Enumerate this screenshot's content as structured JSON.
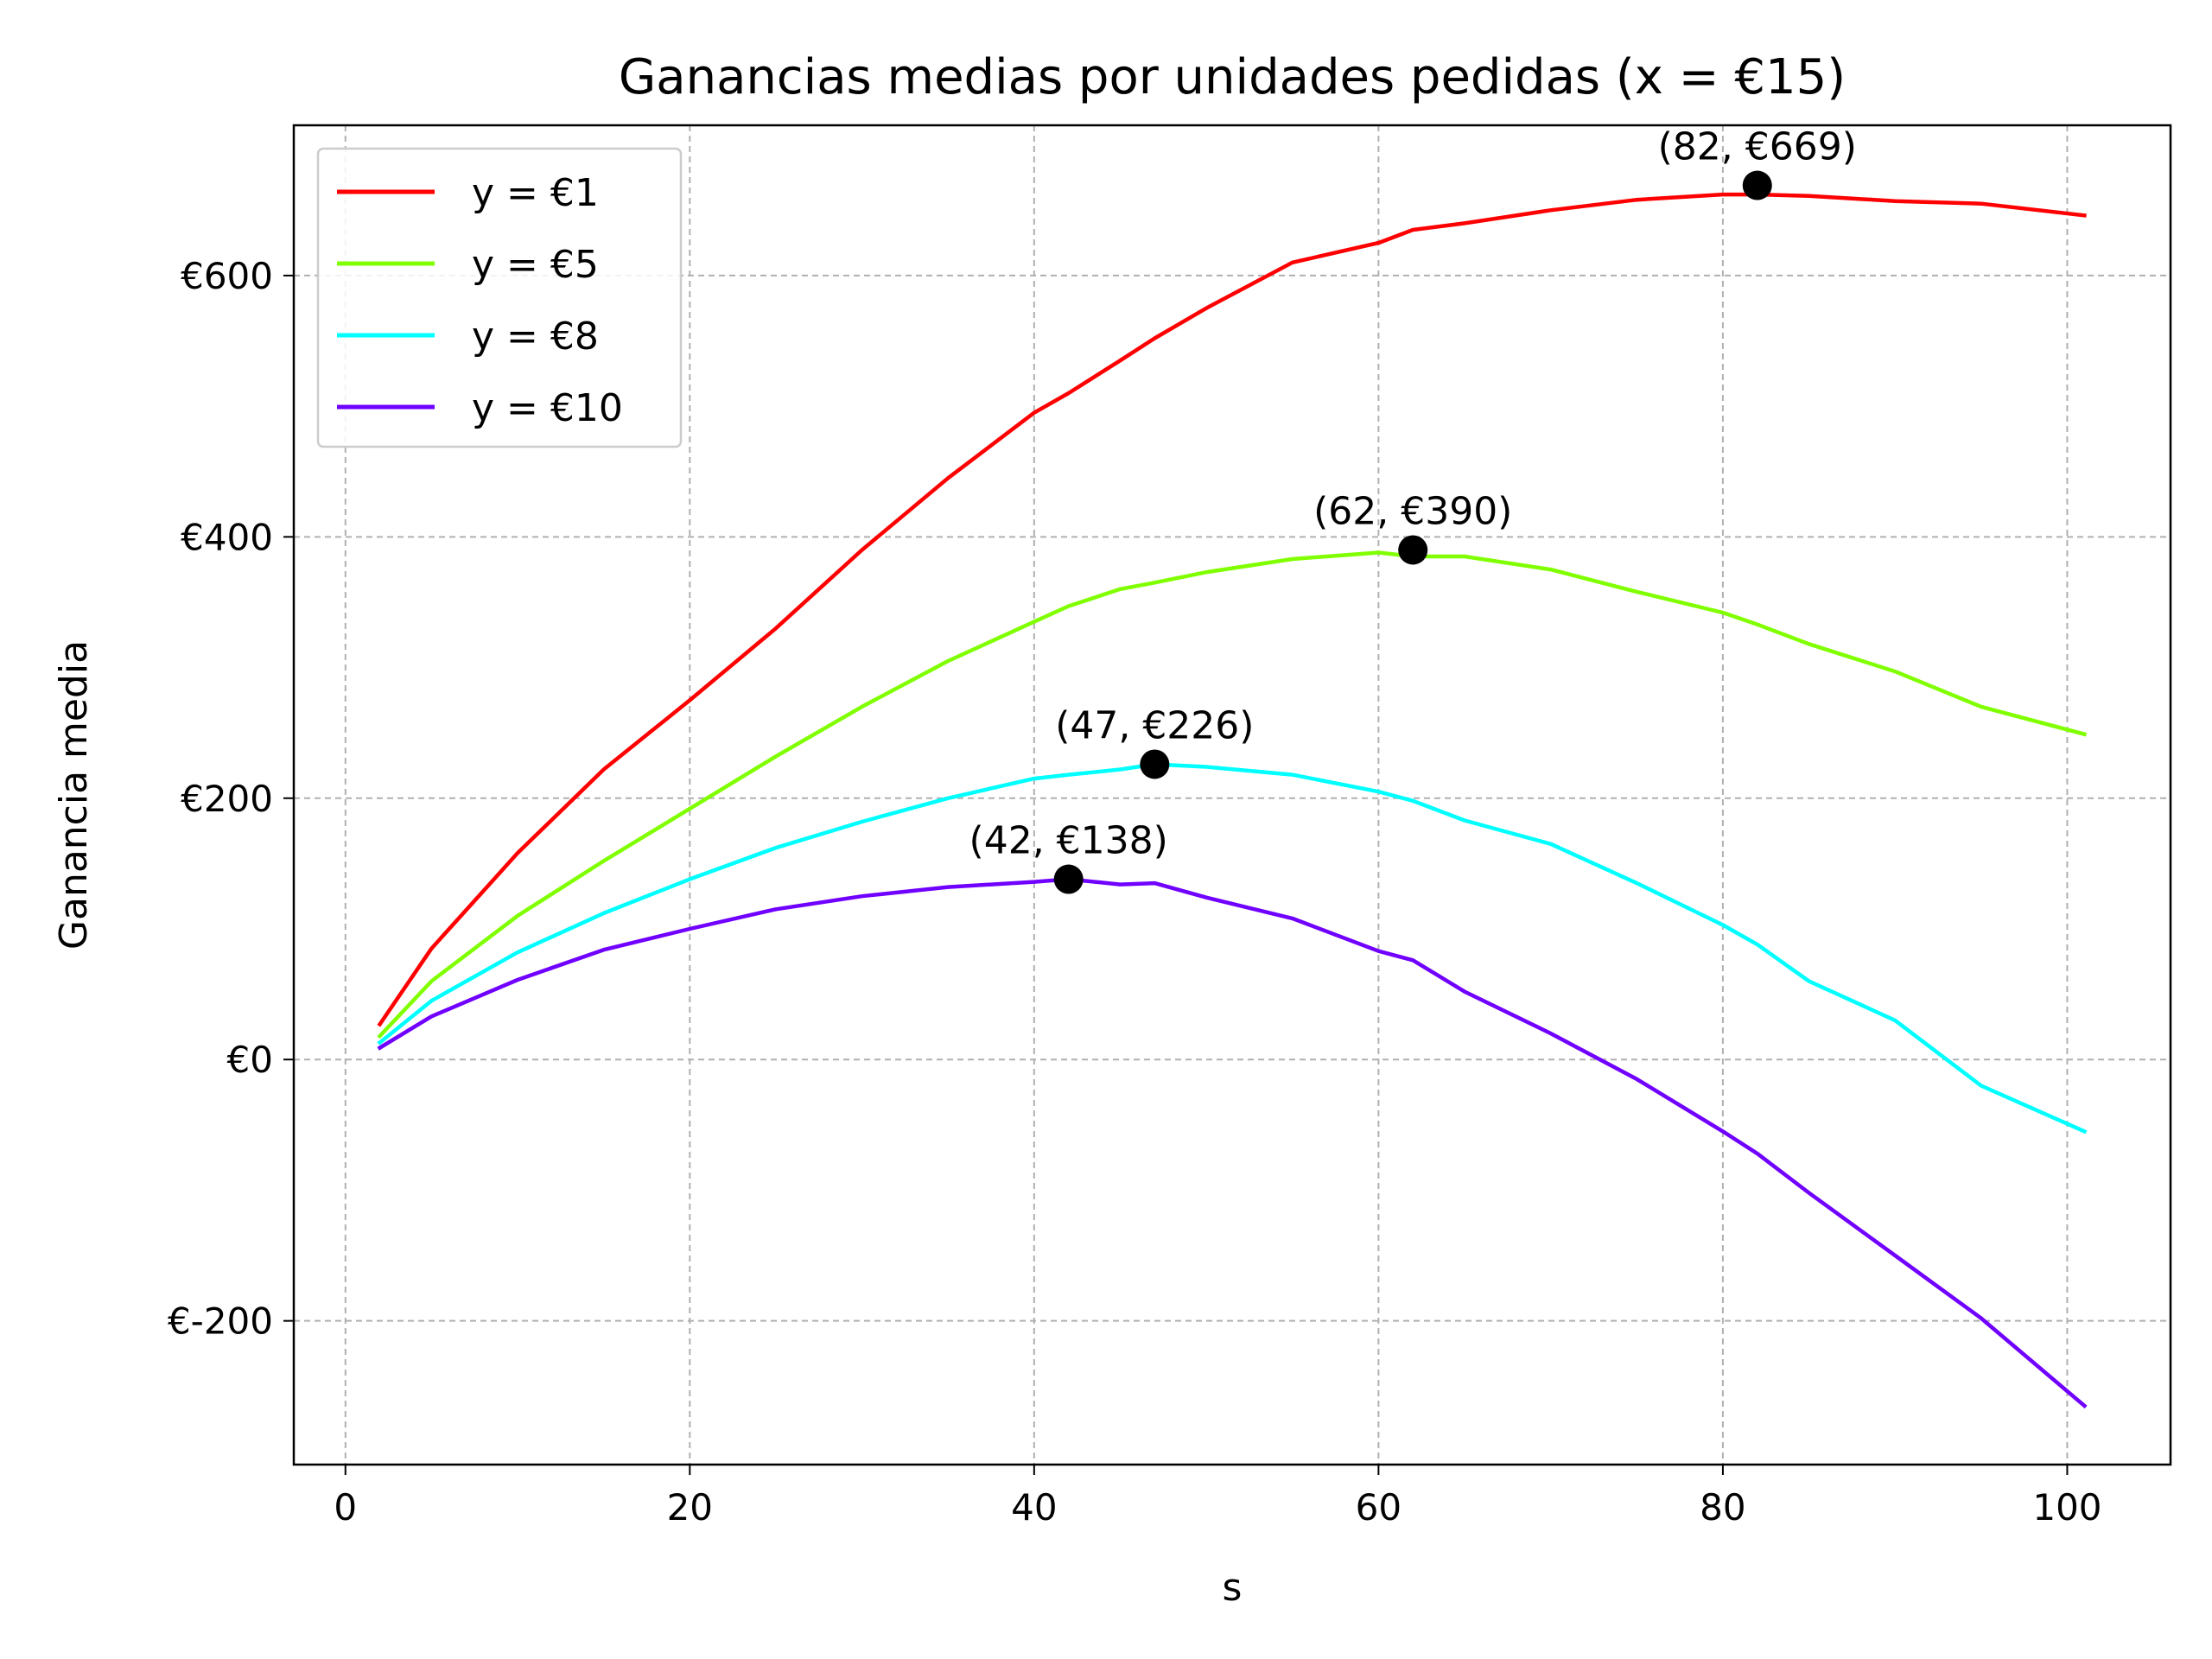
{
  "chart_data": {
    "type": "line",
    "title": "Ganancias medias por unidades pedidas (x = €15)",
    "xlabel": "s",
    "ylabel": "Ganancia media",
    "xlim": [
      -3,
      106
    ],
    "ylim": [
      -310,
      715
    ],
    "xticks": [
      0,
      20,
      40,
      60,
      80,
      100
    ],
    "xtick_labels": [
      "0",
      "20",
      "40",
      "60",
      "80",
      "100"
    ],
    "yticks": [
      -200,
      0,
      200,
      400,
      600
    ],
    "ytick_labels": [
      "€-200",
      "€0",
      "€200",
      "€400",
      "€600"
    ],
    "grid": true,
    "legend_position": "upper-left",
    "x": [
      2,
      5,
      10,
      15,
      20,
      25,
      30,
      35,
      40,
      42,
      45,
      47,
      50,
      55,
      60,
      62,
      65,
      70,
      75,
      80,
      82,
      85,
      90,
      95,
      101
    ],
    "series": [
      {
        "name": "y = €1",
        "color": "#ff0000",
        "values": [
          27,
          85,
          158,
          222,
          275,
          330,
          390,
          445,
          495,
          510,
          535,
          552,
          575,
          610,
          625,
          635,
          640,
          650,
          658,
          662,
          662,
          661,
          657,
          655,
          646
        ]
      },
      {
        "name": "y = €5",
        "color": "#80ff00",
        "values": [
          18,
          60,
          110,
          152,
          192,
          232,
          270,
          305,
          335,
          347,
          360,
          365,
          373,
          383,
          388,
          385,
          385,
          375,
          358,
          342,
          333,
          318,
          297,
          270,
          249
        ]
      },
      {
        "name": "y = €8",
        "color": "#00ffff",
        "values": [
          13,
          45,
          82,
          112,
          138,
          162,
          182,
          200,
          215,
          218,
          222,
          226,
          224,
          218,
          205,
          198,
          183,
          165,
          135,
          103,
          88,
          60,
          30,
          -20,
          -55
        ]
      },
      {
        "name": "y = €10",
        "color": "#7000ff",
        "values": [
          9,
          33,
          61,
          84,
          100,
          115,
          125,
          132,
          136,
          138,
          134,
          135,
          124,
          108,
          83,
          76,
          52,
          20,
          -15,
          -55,
          -72,
          -102,
          -150,
          -198,
          -265
        ]
      }
    ],
    "annotations": [
      {
        "x": 82,
        "y": 669,
        "text": "(82, €669)"
      },
      {
        "x": 62,
        "y": 390,
        "text": "(62, €390)"
      },
      {
        "x": 47,
        "y": 226,
        "text": "(47, €226)"
      },
      {
        "x": 42,
        "y": 138,
        "text": "(42, €138)"
      }
    ],
    "marker_color": "#000000"
  }
}
